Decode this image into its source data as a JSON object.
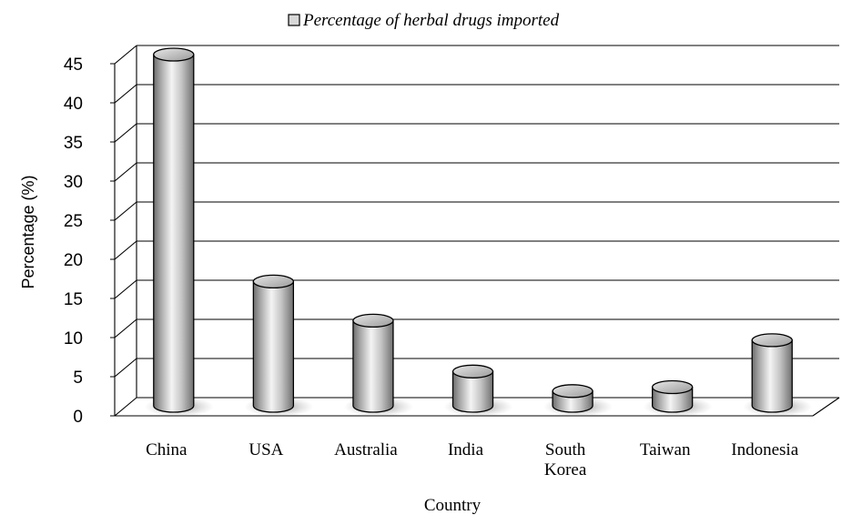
{
  "chart_data": {
    "type": "bar",
    "style": "3d-cylinder",
    "categories": [
      "China",
      "USA",
      "Australia",
      "India",
      "South Korea",
      "Taiwan",
      "Indonesia"
    ],
    "category_lines": [
      [
        "China"
      ],
      [
        "USA"
      ],
      [
        "Australia"
      ],
      [
        "India"
      ],
      [
        "South",
        "Korea"
      ],
      [
        "Taiwan"
      ],
      [
        "Indonesia"
      ]
    ],
    "series": [
      {
        "name": "Percentage of herbal drugs imported",
        "values": [
          45,
          16,
          11,
          4.5,
          2,
          2.5,
          8.5
        ]
      }
    ],
    "xlabel": "Country",
    "ylabel": "Percentage (%)",
    "ylim": [
      0,
      45
    ],
    "yticks": [
      "0",
      "5",
      "10",
      "15",
      "20",
      "25",
      "30",
      "35",
      "40",
      "45"
    ],
    "grid": true,
    "legend": "top-center",
    "colors": {
      "bar": "#c8c8c8",
      "bar_dark": "#6e6e6e",
      "bar_light": "#f4f4f4",
      "grid": "#000000"
    }
  }
}
